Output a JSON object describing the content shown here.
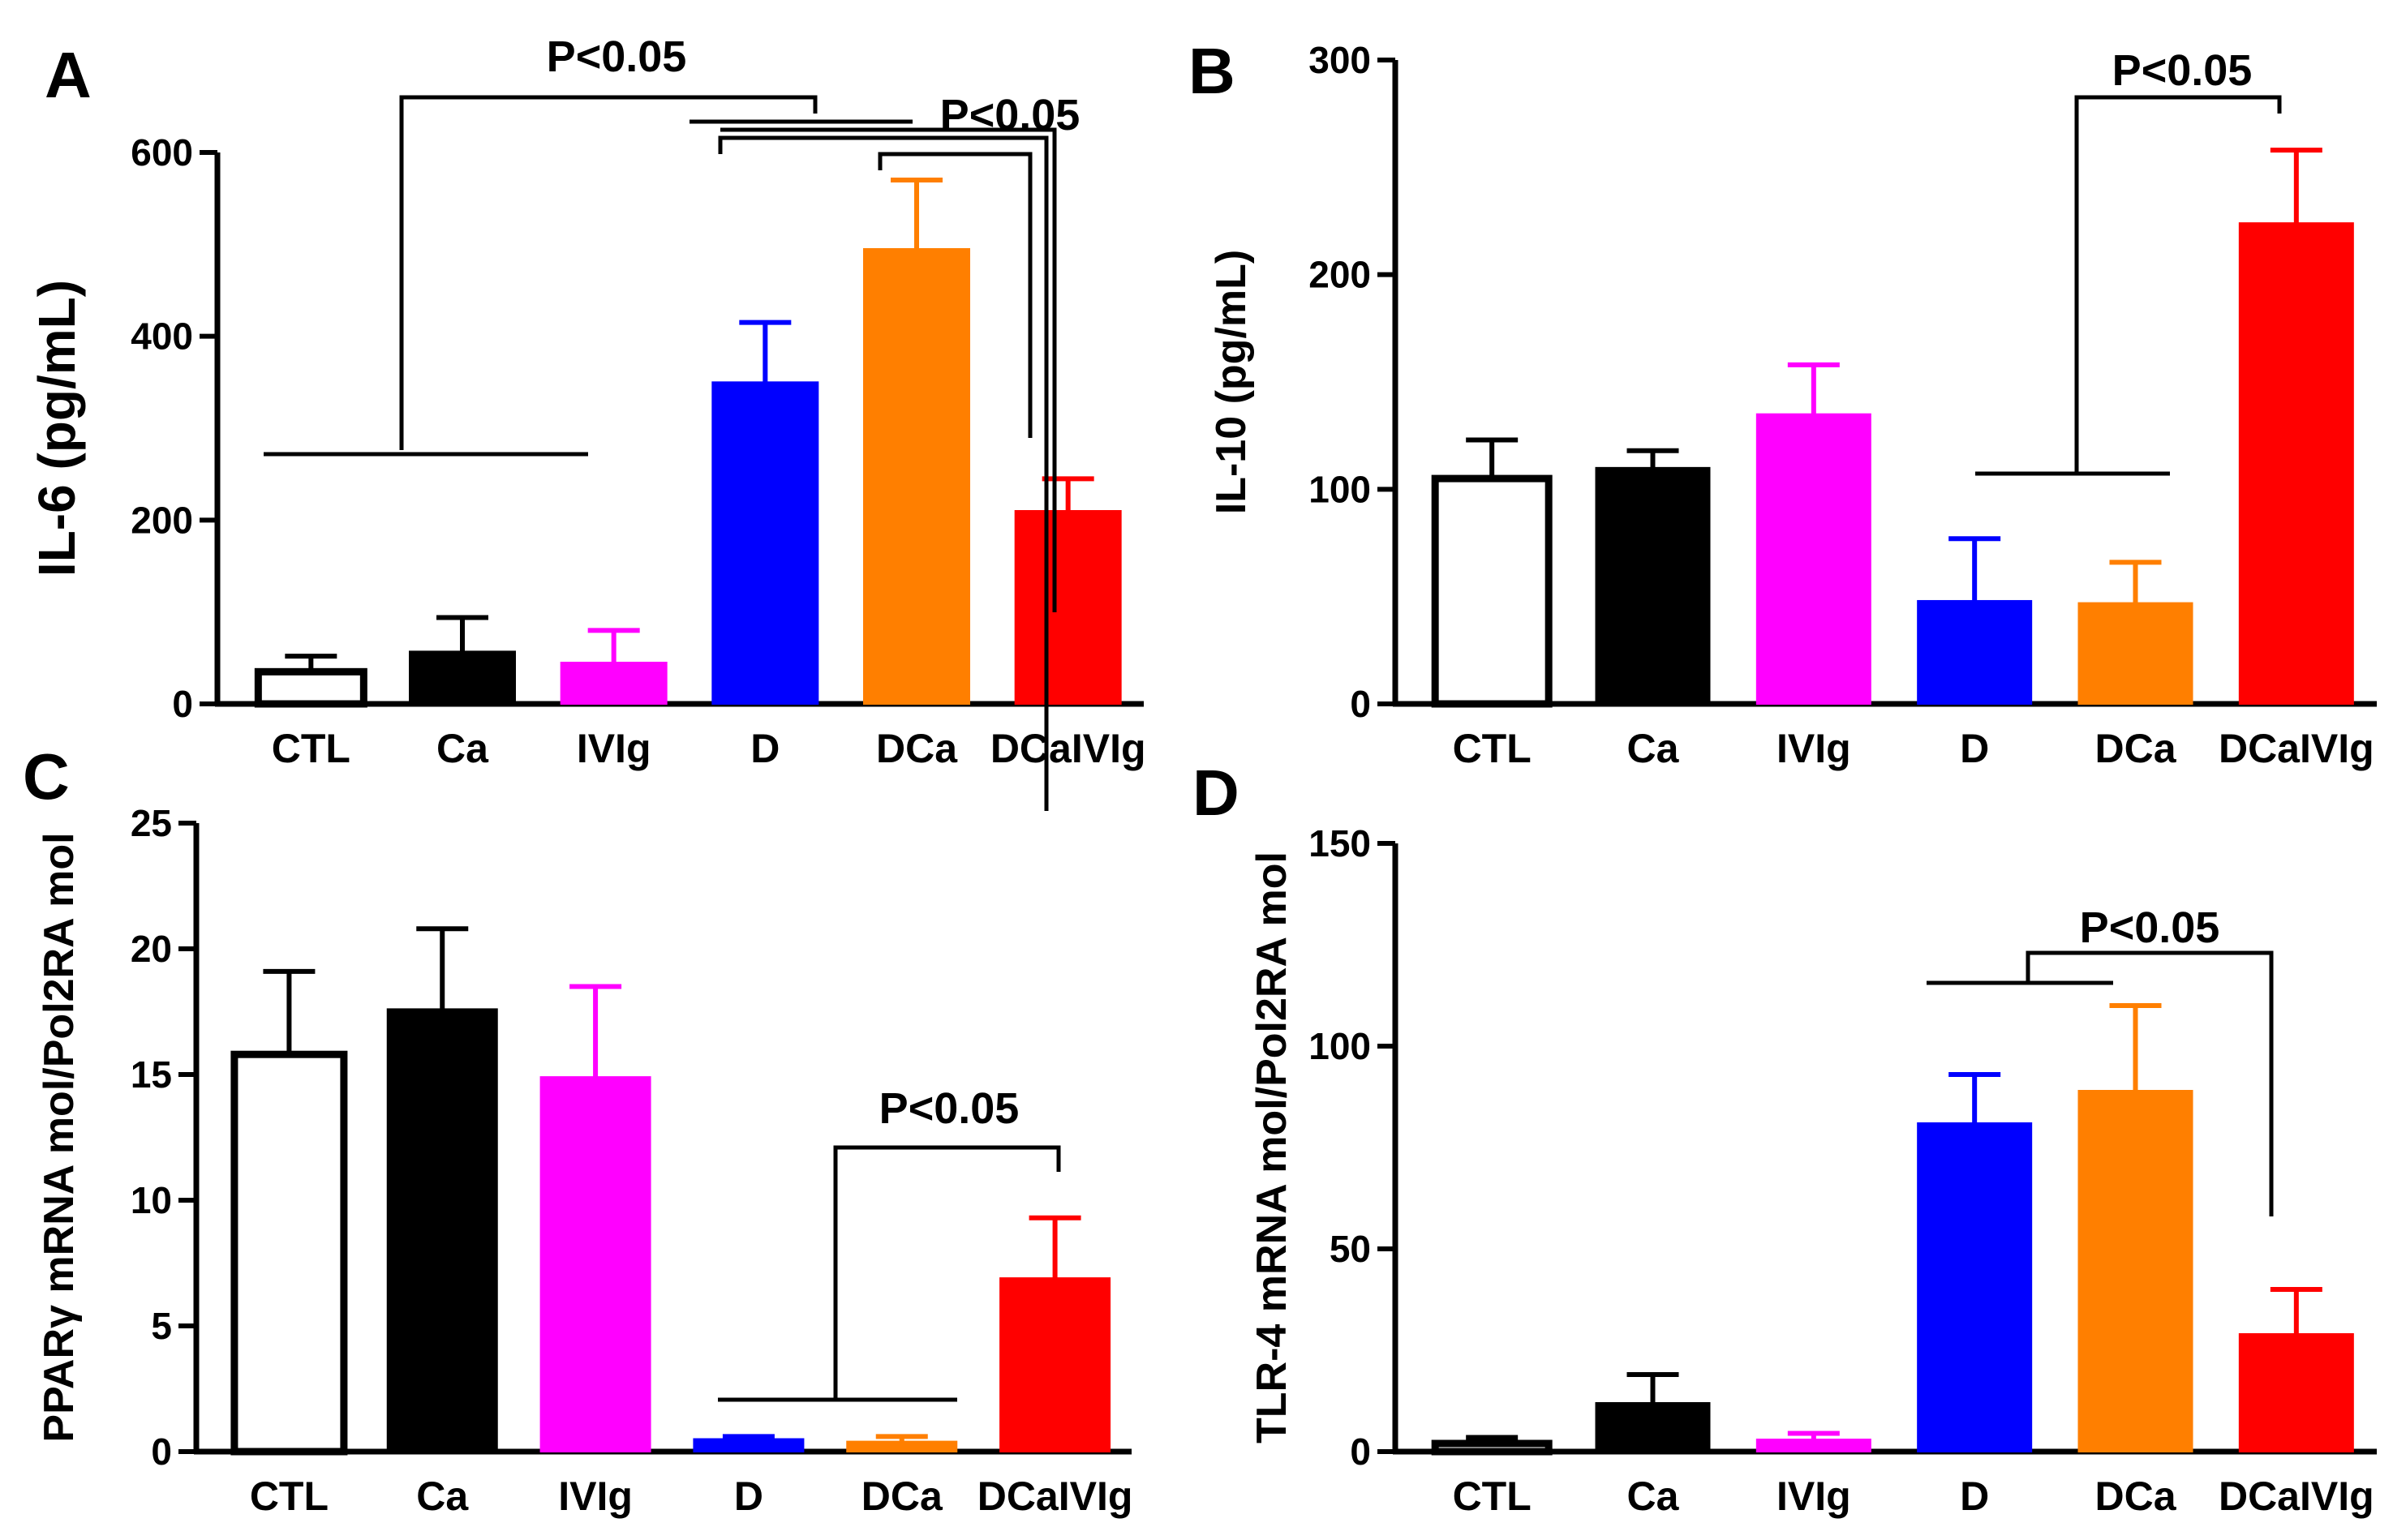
{
  "figure": {
    "colors": {
      "CTL": "#ffffff",
      "Ca": "#000000",
      "IVIg": "#ff00ff",
      "D": "#0000ff",
      "DCa": "#ff7f00",
      "DCaIVIg": "#ff0000",
      "axis": "#000000"
    }
  },
  "chart_data": [
    {
      "panel": "A",
      "type": "bar",
      "categories": [
        "CTL",
        "Ca",
        "IVIg",
        "D",
        "DCa",
        "DCaIVIg"
      ],
      "values": [
        35,
        57,
        45,
        350,
        495,
        210
      ],
      "errors": [
        17,
        37,
        35,
        65,
        75,
        35
      ],
      "ylabel": "IL-6 (pg/mL)",
      "ylim": [
        0,
        600
      ],
      "yticks": [
        "0",
        "200",
        "400",
        "600"
      ],
      "annotations": [
        {
          "label": "P<0.05",
          "type": "group-bracket"
        },
        {
          "label": "P<0.05",
          "type": "pairwise-brackets"
        }
      ]
    },
    {
      "panel": "B",
      "type": "bar",
      "categories": [
        "CTL",
        "Ca",
        "IVIg",
        "D",
        "DCa",
        "DCaIVIg"
      ],
      "values": [
        105,
        110,
        135,
        48,
        47,
        224
      ],
      "errors": [
        18,
        8,
        23,
        29,
        19,
        34
      ],
      "ylabel": "IL-10 (pg/mL)",
      "ylim": [
        0,
        300
      ],
      "yticks": [
        "0",
        "100",
        "200",
        "300"
      ],
      "annotations": [
        {
          "label": "P<0.05",
          "type": "group-bracket"
        }
      ]
    },
    {
      "panel": "C",
      "type": "bar",
      "categories": [
        "CTL",
        "Ca",
        "IVIg",
        "D",
        "DCa",
        "DCaIVIg"
      ],
      "values": [
        15.8,
        17.6,
        14.9,
        0.5,
        0.4,
        6.9
      ],
      "errors": [
        3.3,
        3.2,
        3.6,
        0.1,
        0.2,
        2.4
      ],
      "ylabel": "PPARγ mRNA mol/Pol2RA mol",
      "ylim": [
        0,
        25
      ],
      "yticks": [
        "0",
        "5",
        "10",
        "15",
        "20",
        "25"
      ],
      "annotations": [
        {
          "label": "P<0.05",
          "type": "group-bracket"
        }
      ]
    },
    {
      "panel": "D",
      "type": "bar",
      "categories": [
        "CTL",
        "Ca",
        "IVIg",
        "D",
        "DCa",
        "DCaIVIg"
      ],
      "values": [
        2,
        12,
        3,
        81,
        89,
        29
      ],
      "errors": [
        1.5,
        7,
        1.5,
        12,
        21,
        11
      ],
      "ylabel": "TLR-4 mRNA mol/Pol2RA mol",
      "ylim": [
        0,
        150
      ],
      "yticks": [
        "0",
        "50",
        "100",
        "150"
      ],
      "annotations": [
        {
          "label": "P<0.05",
          "type": "group-bracket"
        }
      ]
    }
  ]
}
